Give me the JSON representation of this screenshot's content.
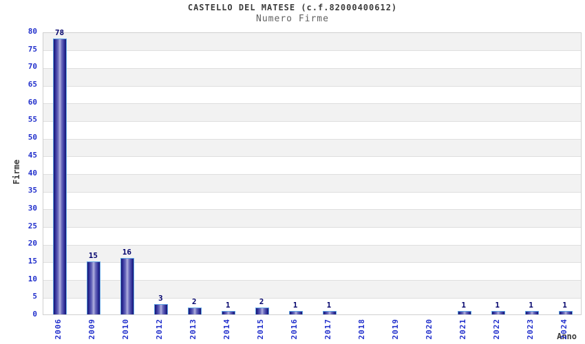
{
  "header": {
    "title": "CASTELLO DEL MATESE (c.f.82000400612)",
    "subtitle": "Numero Firme"
  },
  "chart_data": {
    "type": "bar",
    "title": "CASTELLO DEL MATESE (c.f.82000400612)",
    "subtitle": "Numero Firme",
    "xlabel": "Anno",
    "ylabel": "Firme",
    "categories": [
      "2006",
      "2009",
      "2010",
      "2012",
      "2013",
      "2014",
      "2015",
      "2016",
      "2017",
      "2018",
      "2019",
      "2020",
      "2021",
      "2022",
      "2023",
      "2024"
    ],
    "values": [
      78,
      15,
      16,
      3,
      2,
      1,
      2,
      1,
      1,
      0,
      0,
      0,
      1,
      1,
      1,
      1
    ],
    "ylim": [
      0,
      80
    ],
    "ytick_step": 5,
    "legend": "none",
    "grid": "horizontal-bands",
    "colors": {
      "bar_dark": "#15156e",
      "bar_light": "#b2b2e0",
      "bar_border": "#61a4e4",
      "tick_label": "#2230cc",
      "value_label": "#00006b",
      "title": "#3b3b3b",
      "subtitle": "#606060",
      "band_gray": "#f2f2f2",
      "band_white": "#ffffff",
      "gridline": "#dedede"
    }
  }
}
